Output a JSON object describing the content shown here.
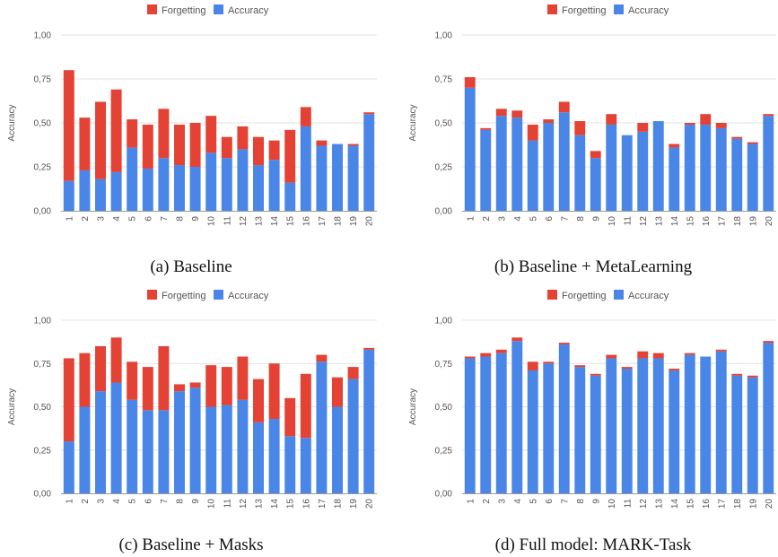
{
  "colors": {
    "forgetting": "#e34234",
    "accuracy": "#4a86e8",
    "grid": "#e3e3e3",
    "baseline": "#9a9a9a",
    "text": "#555555"
  },
  "legend": {
    "forgetting_label": "Forgetting",
    "accuracy_label": "Accuracy"
  },
  "chart_data": [
    {
      "type": "bar",
      "stacked": true,
      "caption": "(a) Baseline",
      "ylabel": "Accuracy",
      "ylim": [
        0,
        1
      ],
      "yticks": [
        "0,00",
        "0,25",
        "0,50",
        "0,75",
        "1,00"
      ],
      "categories": [
        "1",
        "2",
        "3",
        "4",
        "5",
        "6",
        "7",
        "8",
        "9",
        "10",
        "11",
        "12",
        "13",
        "14",
        "15",
        "16",
        "17",
        "18",
        "19",
        "20"
      ],
      "series": [
        {
          "name": "Accuracy",
          "values": [
            0.17,
            0.23,
            0.18,
            0.22,
            0.36,
            0.24,
            0.3,
            0.26,
            0.25,
            0.33,
            0.3,
            0.35,
            0.26,
            0.29,
            0.16,
            0.48,
            0.37,
            0.38,
            0.37,
            0.55
          ]
        },
        {
          "name": "Forgetting",
          "values": [
            0.63,
            0.3,
            0.44,
            0.47,
            0.16,
            0.25,
            0.28,
            0.23,
            0.25,
            0.21,
            0.12,
            0.13,
            0.16,
            0.11,
            0.3,
            0.11,
            0.03,
            0.0,
            0.01,
            0.01
          ]
        }
      ],
      "legend_position": "top-center",
      "grid": true
    },
    {
      "type": "bar",
      "stacked": true,
      "caption": "(b) Baseline + MetaLearning",
      "ylabel": "Accuracy",
      "ylim": [
        0,
        1
      ],
      "yticks": [
        "0,00",
        "0,25",
        "0,50",
        "0,75",
        "1,00"
      ],
      "categories": [
        "1",
        "2",
        "3",
        "4",
        "5",
        "6",
        "7",
        "8",
        "9",
        "10",
        "11",
        "12",
        "13",
        "14",
        "15",
        "16",
        "17",
        "18",
        "19",
        "20"
      ],
      "series": [
        {
          "name": "Accuracy",
          "values": [
            0.7,
            0.46,
            0.54,
            0.53,
            0.4,
            0.5,
            0.56,
            0.43,
            0.3,
            0.49,
            0.43,
            0.45,
            0.51,
            0.36,
            0.49,
            0.49,
            0.47,
            0.41,
            0.38,
            0.54
          ]
        },
        {
          "name": "Forgetting",
          "values": [
            0.06,
            0.01,
            0.04,
            0.04,
            0.09,
            0.02,
            0.06,
            0.08,
            0.04,
            0.06,
            0.0,
            0.05,
            0.0,
            0.02,
            0.01,
            0.06,
            0.03,
            0.01,
            0.01,
            0.01
          ]
        }
      ],
      "legend_position": "top-center",
      "grid": true
    },
    {
      "type": "bar",
      "stacked": true,
      "caption": "(c) Baseline + Masks",
      "ylabel": "Accuracy",
      "ylim": [
        0,
        1
      ],
      "yticks": [
        "0,00",
        "0,25",
        "0,50",
        "0,75",
        "1,00"
      ],
      "categories": [
        "1",
        "2",
        "3",
        "4",
        "5",
        "6",
        "7",
        "8",
        "9",
        "10",
        "11",
        "12",
        "13",
        "14",
        "15",
        "16",
        "17",
        "18",
        "19",
        "20"
      ],
      "series": [
        {
          "name": "Accuracy",
          "values": [
            0.3,
            0.5,
            0.59,
            0.64,
            0.54,
            0.48,
            0.48,
            0.59,
            0.61,
            0.5,
            0.51,
            0.54,
            0.41,
            0.43,
            0.33,
            0.32,
            0.76,
            0.5,
            0.66,
            0.83
          ]
        },
        {
          "name": "Forgetting",
          "values": [
            0.48,
            0.31,
            0.26,
            0.26,
            0.22,
            0.25,
            0.37,
            0.04,
            0.03,
            0.24,
            0.22,
            0.25,
            0.25,
            0.32,
            0.22,
            0.37,
            0.04,
            0.17,
            0.07,
            0.01
          ]
        }
      ],
      "legend_position": "top-center",
      "grid": true
    },
    {
      "type": "bar",
      "stacked": true,
      "caption": "(d) Full model: MARK-Task",
      "ylabel": "Accuracy",
      "ylim": [
        0,
        1
      ],
      "yticks": [
        "0,00",
        "0,25",
        "0,50",
        "0,75",
        "1,00"
      ],
      "categories": [
        "1",
        "2",
        "3",
        "4",
        "5",
        "6",
        "7",
        "8",
        "9",
        "10",
        "11",
        "12",
        "13",
        "14",
        "15",
        "16",
        "17",
        "18",
        "19",
        "20"
      ],
      "series": [
        {
          "name": "Accuracy",
          "values": [
            0.78,
            0.79,
            0.81,
            0.88,
            0.71,
            0.75,
            0.86,
            0.73,
            0.68,
            0.78,
            0.72,
            0.78,
            0.78,
            0.71,
            0.8,
            0.79,
            0.82,
            0.68,
            0.67,
            0.87
          ]
        },
        {
          "name": "Forgetting",
          "values": [
            0.01,
            0.02,
            0.02,
            0.02,
            0.05,
            0.01,
            0.01,
            0.01,
            0.01,
            0.02,
            0.01,
            0.04,
            0.03,
            0.01,
            0.01,
            0.0,
            0.01,
            0.01,
            0.01,
            0.01
          ]
        }
      ],
      "legend_position": "top-center",
      "grid": true
    }
  ]
}
